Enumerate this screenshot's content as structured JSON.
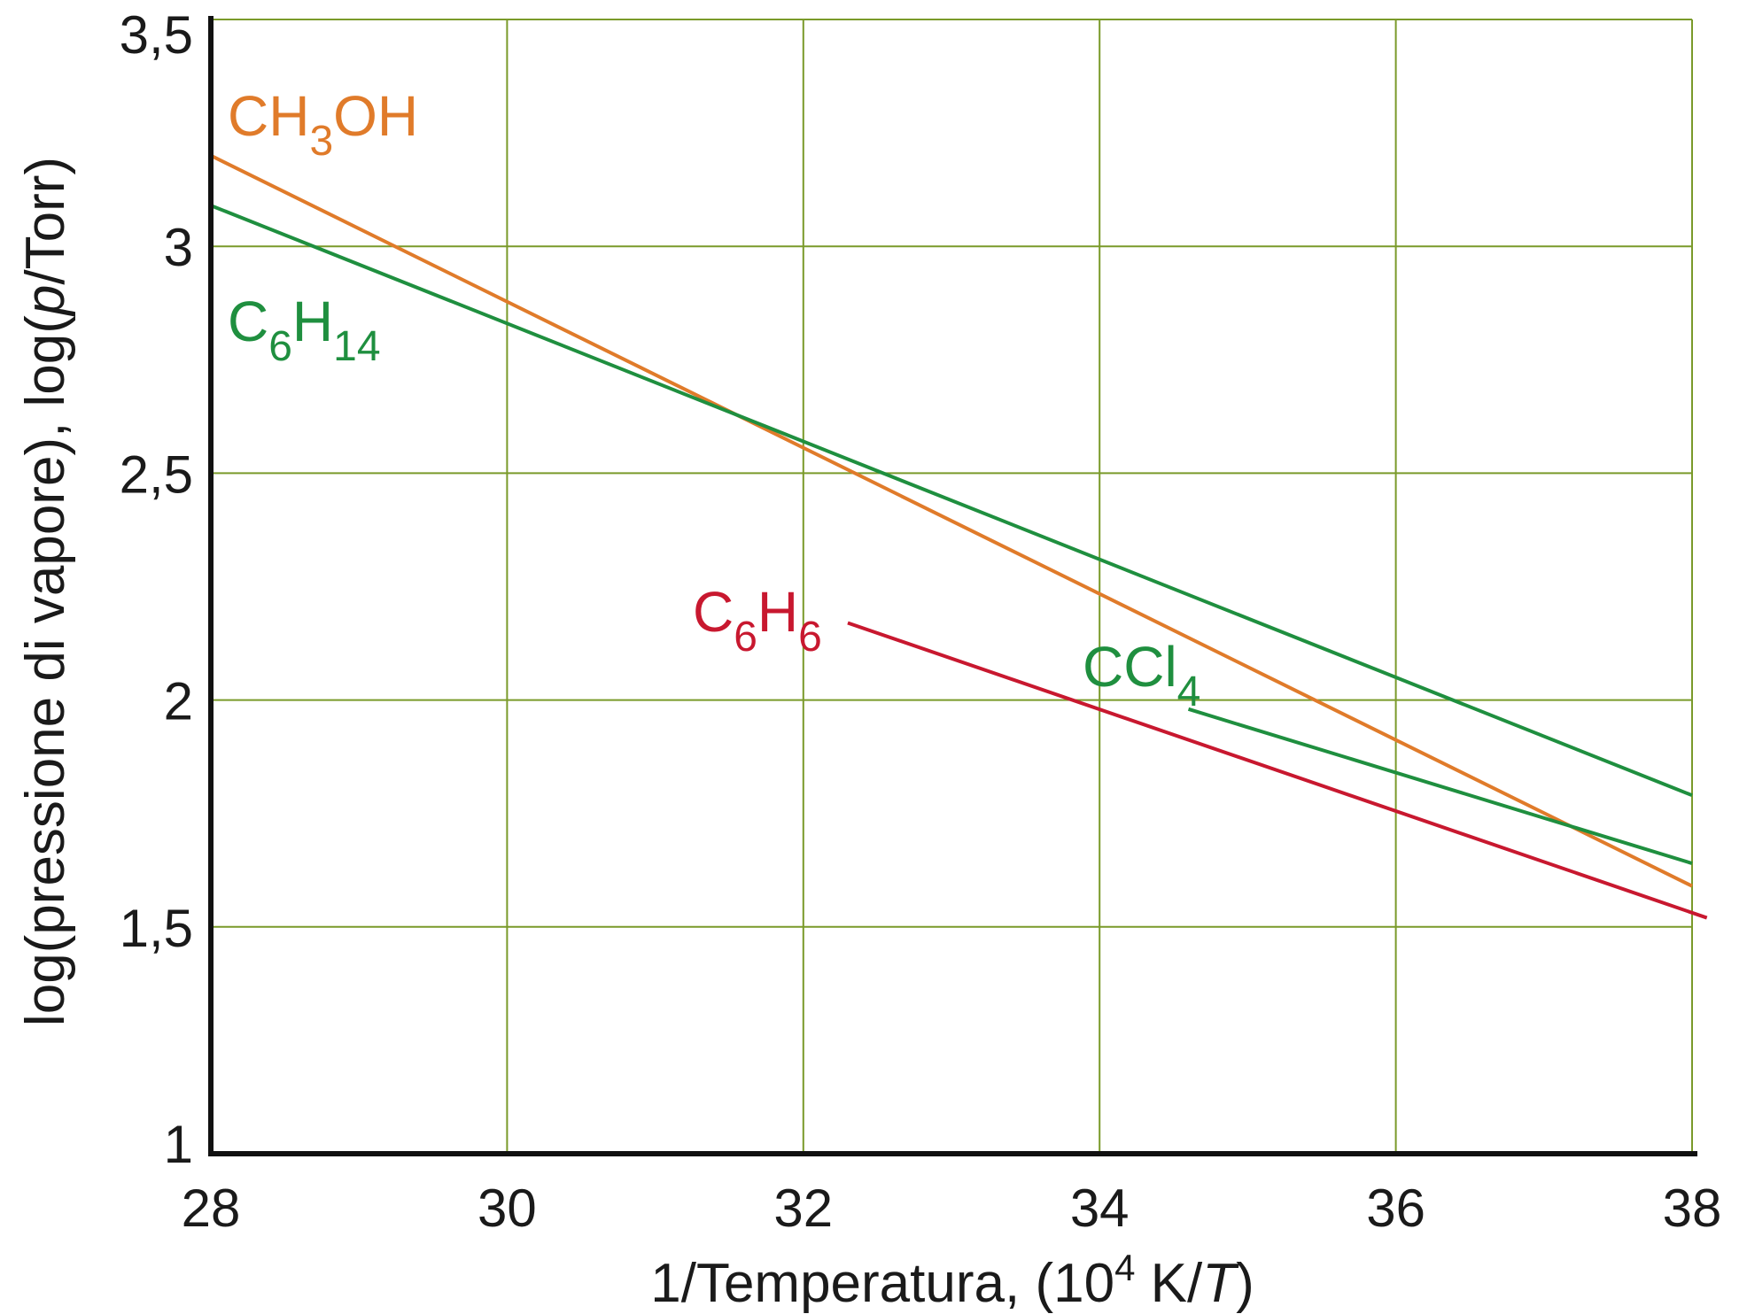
{
  "chart_data": {
    "type": "line",
    "title": "",
    "xlabel": {
      "prefix": "1/Temperatura, (10",
      "sup": "4",
      "mid": " K/",
      "italic": "T",
      "suffix": ")"
    },
    "ylabel": {
      "prefix": "log(pressione di vapore), log(",
      "italic": "p",
      "suffix": "/Torr)"
    },
    "xlim": [
      28,
      38
    ],
    "ylim": [
      1,
      3.5
    ],
    "xticks": [
      28,
      30,
      32,
      34,
      36,
      38
    ],
    "xtick_labels": [
      "28",
      "30",
      "32",
      "34",
      "36",
      "38"
    ],
    "yticks": [
      1,
      1.5,
      2,
      2.5,
      3,
      3.5
    ],
    "ytick_labels": [
      "1",
      "1,5",
      "2",
      "2,5",
      "3",
      "3,5"
    ],
    "grid": true,
    "colors": {
      "grid": "#7a9a2a",
      "axis": "#111111",
      "orange": "#e07b2a",
      "green": "#1f8f3f",
      "red": "#c8182f"
    },
    "series": [
      {
        "id": "ch3oh",
        "label_main": "CH",
        "label_sub1": "3",
        "label_mid": "OH",
        "label_sub2": "",
        "color": "#e07b2a",
        "x": [
          28,
          38
        ],
        "y": [
          3.2,
          1.59
        ]
      },
      {
        "id": "c6h14",
        "label_main": "C",
        "label_sub1": "6",
        "label_mid": "H",
        "label_sub2": "14",
        "color": "#1f8f3f",
        "x": [
          28,
          38
        ],
        "y": [
          3.09,
          1.79
        ]
      },
      {
        "id": "c6h6",
        "label_main": "C",
        "label_sub1": "6",
        "label_mid": "H",
        "label_sub2": "6",
        "color": "#c8182f",
        "x": [
          32.3,
          38.1
        ],
        "y": [
          2.17,
          1.52
        ]
      },
      {
        "id": "ccl4",
        "label_main": "CCl",
        "label_sub1": "4",
        "label_mid": "",
        "label_sub2": "",
        "color": "#1f8f3f",
        "x": [
          34.6,
          38
        ],
        "y": [
          1.98,
          1.64
        ]
      }
    ]
  }
}
